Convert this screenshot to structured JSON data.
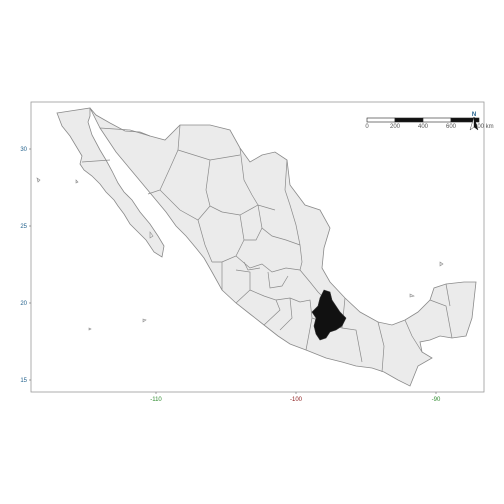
{
  "map": {
    "region_highlighted": "",
    "colors": {
      "land": "#ebebeb",
      "border": "#8a8a8a",
      "highlight": "#111111",
      "frame": "#9a9a9a",
      "y_tick_color": "#1f5f8b",
      "x_tick_colors": [
        "#2e8b2e",
        "#8b1a1a",
        "#2e8b2e"
      ]
    },
    "lon_range": [
      -118.5,
      -85.7
    ],
    "lat_range": [
      14.2,
      33.3
    ],
    "y_ticks": [
      {
        "value": 15,
        "label": "15"
      },
      {
        "value": 20,
        "label": "20"
      },
      {
        "value": 25,
        "label": "25"
      },
      {
        "value": 30,
        "label": "30"
      }
    ],
    "x_ticks": [
      {
        "value": -110,
        "label": "-110"
      },
      {
        "value": -100,
        "label": "-100"
      },
      {
        "value": -90,
        "label": "-90"
      }
    ],
    "scalebar": {
      "labels": [
        "0",
        "200",
        "400",
        "600",
        "800 km"
      ],
      "segments": [
        "white",
        "black",
        "white",
        "black"
      ]
    },
    "north_arrow": {
      "label": "N",
      "icon": "north-arrow-icon"
    }
  }
}
